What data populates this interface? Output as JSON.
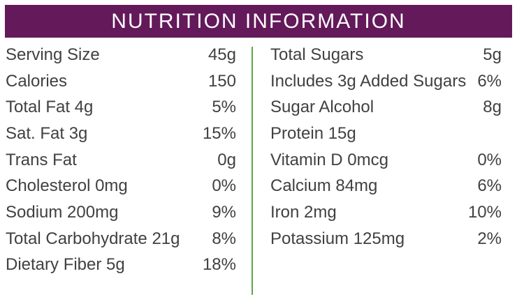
{
  "title": "NUTRITION INFORMATION",
  "left_column": [
    {
      "label": "Serving Size",
      "value": "45g"
    },
    {
      "label": "Calories",
      "value": "150"
    },
    {
      "label": "Total Fat 4g",
      "value": "5%"
    },
    {
      "label": "Sat. Fat 3g",
      "value": "15%"
    },
    {
      "label": "Trans Fat",
      "value": "0g"
    },
    {
      "label": "Cholesterol 0mg",
      "value": "0%"
    },
    {
      "label": "Sodium 200mg",
      "value": "9%"
    },
    {
      "label": "Total Carbohydrate 21g",
      "value": "8%"
    },
    {
      "label": "Dietary Fiber 5g",
      "value": "18%"
    }
  ],
  "right_column": [
    {
      "label": "Total Sugars",
      "value": "5g"
    },
    {
      "label": "Includes 3g Added Sugars",
      "value": "6%"
    },
    {
      "label": "Sugar Alcohol",
      "value": "8g"
    },
    {
      "label": "Protein 15g",
      "value": ""
    },
    {
      "label": "Vitamin D 0mcg",
      "value": "0%"
    },
    {
      "label": "Calcium 84mg",
      "value": "6%"
    },
    {
      "label": "Iron 2mg",
      "value": "10%"
    },
    {
      "label": "Potassium 125mg",
      "value": "2%"
    }
  ],
  "colors": {
    "banner": "#63195a",
    "divider": "#5aa64a",
    "text": "#414042"
  }
}
